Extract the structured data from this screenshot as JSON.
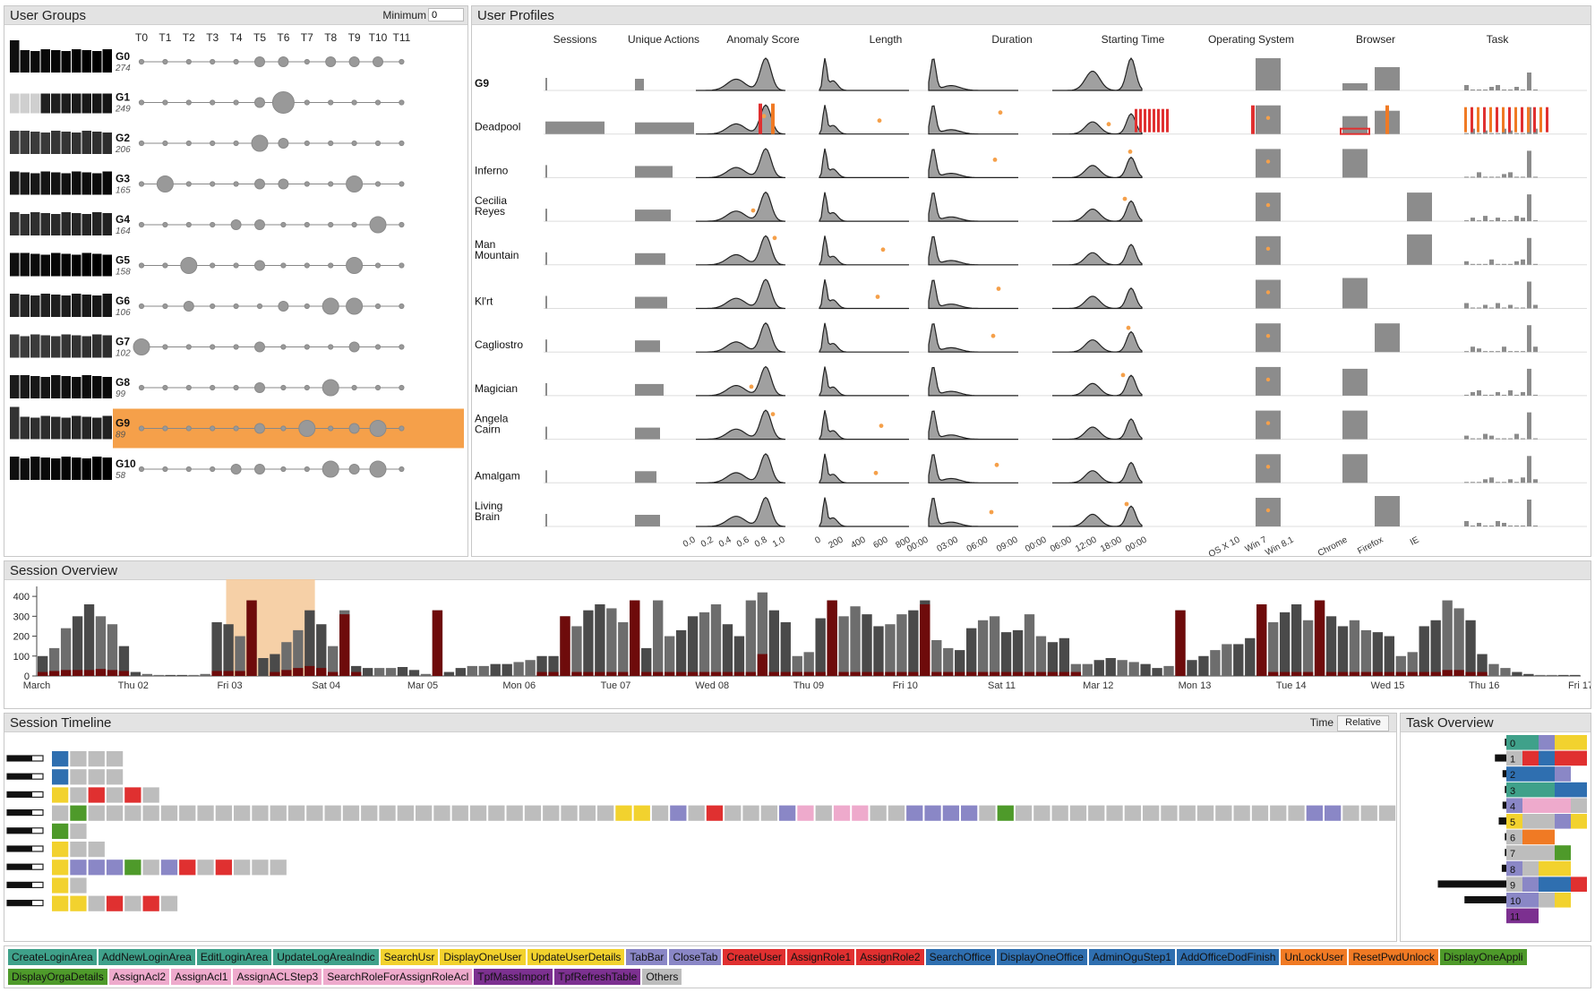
{
  "colors": {
    "highlight": "#f5a04a",
    "highlight_band": "#f5c898",
    "dark_red": "#6e0b0b",
    "bar_dark": "#3c3c3c",
    "bar_gray": "#9a9a9a",
    "panel_header": "#e3e3e3"
  },
  "user_groups": {
    "title": "User Groups",
    "minimum_label": "Minimum",
    "minimum_value": "0",
    "columns": [
      "T0",
      "T1",
      "T2",
      "T3",
      "T4",
      "T5",
      "T6",
      "T7",
      "T8",
      "T9",
      "T10",
      "T11"
    ],
    "selected_group": "G9",
    "groups": [
      {
        "name": "G0",
        "count": "274",
        "circles": [
          0,
          0,
          0,
          0,
          0,
          1,
          1,
          0,
          1,
          1,
          1,
          0
        ]
      },
      {
        "name": "G1",
        "count": "249",
        "circles": [
          0,
          0,
          0,
          0,
          0,
          1,
          3,
          0,
          0,
          0,
          0,
          0
        ]
      },
      {
        "name": "G2",
        "count": "206",
        "circles": [
          0,
          0,
          0,
          0,
          0,
          2,
          1,
          0,
          0,
          0,
          0,
          0
        ]
      },
      {
        "name": "G3",
        "count": "165",
        "circles": [
          0,
          2,
          0,
          0,
          0,
          1,
          1,
          0,
          0,
          2,
          0,
          0
        ]
      },
      {
        "name": "G4",
        "count": "164",
        "circles": [
          0,
          0,
          0,
          0,
          1,
          1,
          0,
          0,
          0,
          0,
          2,
          0
        ]
      },
      {
        "name": "G5",
        "count": "158",
        "circles": [
          0,
          0,
          2,
          0,
          0,
          1,
          0,
          0,
          0,
          2,
          0,
          0
        ]
      },
      {
        "name": "G6",
        "count": "106",
        "circles": [
          0,
          0,
          1,
          0,
          0,
          0,
          1,
          0,
          2,
          2,
          0,
          0
        ]
      },
      {
        "name": "G7",
        "count": "102",
        "circles": [
          2,
          0,
          0,
          0,
          0,
          1,
          0,
          0,
          0,
          1,
          0,
          0
        ]
      },
      {
        "name": "G8",
        "count": "99",
        "circles": [
          0,
          0,
          0,
          0,
          0,
          1,
          0,
          0,
          2,
          0,
          0,
          0
        ]
      },
      {
        "name": "G9",
        "count": "89",
        "circles": [
          0,
          0,
          0,
          0,
          0,
          1,
          0,
          2,
          0,
          1,
          2,
          0
        ]
      },
      {
        "name": "G10",
        "count": "58",
        "circles": [
          0,
          0,
          0,
          0,
          1,
          1,
          0,
          0,
          2,
          1,
          2,
          0
        ]
      }
    ]
  },
  "user_profiles": {
    "title": "User Profiles",
    "columns": [
      "Sessions",
      "Unique Actions",
      "Anomaly Score",
      "Length",
      "Duration",
      "Starting Time",
      "Operating System",
      "Browser",
      "Task"
    ],
    "rows": [
      {
        "name": "G9",
        "bold": true
      },
      {
        "name": "Deadpool"
      },
      {
        "name": "Inferno"
      },
      {
        "name": "Cecilia Reyes"
      },
      {
        "name": "Man Mountain"
      },
      {
        "name": "Kl'rt"
      },
      {
        "name": "Cagliostro"
      },
      {
        "name": "Magician"
      },
      {
        "name": "Angela Cairn"
      },
      {
        "name": "Amalgam"
      },
      {
        "name": "Living Brain"
      }
    ],
    "axis_ticks": {
      "anomaly_score": [
        "0.0",
        "0.2",
        "0.4",
        "0.6",
        "0.8",
        "1.0"
      ],
      "length": [
        "0",
        "200",
        "400",
        "600",
        "800"
      ],
      "duration": [
        "00:00",
        "03:00",
        "06:00",
        "09:00"
      ],
      "starting_time": [
        "00:00",
        "06:00",
        "12:00",
        "18:00",
        "00:00"
      ],
      "operating_system": [
        "OS X 10",
        "Win 7",
        "Win 8.1"
      ],
      "browser": [
        "Chrome",
        "Firefox",
        "IE"
      ]
    }
  },
  "session_overview": {
    "title": "Session Overview",
    "y_ticks": [
      "0",
      "100",
      "200",
      "300",
      "400"
    ],
    "x_labels": [
      "March",
      "Thu 02",
      "Fri 03",
      "Sat 04",
      "Mar 05",
      "Mon 06",
      "Tue 07",
      "Wed 08",
      "Thu 09",
      "Fri 10",
      "Sat 11",
      "Mar 12",
      "Mon 13",
      "Tue 14",
      "Wed 15",
      "Thu 16",
      "Fri 17"
    ]
  },
  "chart_data": {
    "type": "bar",
    "title": "Session Overview",
    "ylim": [
      0,
      450
    ],
    "x_labels": [
      "March",
      "Thu 02",
      "Fri 03",
      "Sat 04",
      "Mar 05",
      "Mon 06",
      "Tue 07",
      "Wed 08",
      "Thu 09",
      "Fri 10",
      "Sat 11",
      "Mar 12",
      "Mon 13",
      "Tue 14",
      "Wed 15",
      "Thu 16",
      "Fri 17"
    ],
    "series": [
      {
        "values": [
          100,
          140,
          240,
          300,
          360,
          300,
          260,
          150,
          20,
          10,
          5,
          5,
          5,
          5,
          10,
          270,
          260,
          200,
          380,
          90,
          110,
          170,
          230,
          330,
          260,
          150,
          330,
          50,
          40,
          40,
          40,
          45,
          30,
          10,
          330,
          20,
          40,
          50,
          50,
          60,
          60,
          70,
          80,
          100,
          100,
          300,
          250,
          330,
          360,
          340,
          270,
          380,
          140,
          380,
          200,
          230,
          300,
          320,
          360,
          260,
          200,
          380,
          420,
          330,
          270,
          100,
          120,
          290,
          380,
          300,
          350,
          310,
          250,
          260,
          310,
          330,
          380,
          180,
          140,
          130,
          240,
          280,
          300,
          220,
          230,
          310,
          200,
          170,
          190,
          60,
          60,
          80,
          90,
          80,
          70,
          60,
          40,
          50,
          330,
          80,
          100,
          130,
          160,
          160,
          190,
          360,
          270,
          320,
          360,
          280,
          380,
          300,
          250,
          280,
          230,
          220,
          200,
          100,
          120,
          250,
          280,
          380,
          340,
          280,
          110,
          60,
          40,
          20,
          10,
          5,
          5,
          5,
          5
        ]
      },
      {
        "values": [
          20,
          25,
          30,
          30,
          30,
          35,
          30,
          25,
          0,
          0,
          0,
          0,
          0,
          0,
          0,
          25,
          25,
          25,
          380,
          0,
          20,
          30,
          40,
          50,
          40,
          20,
          310,
          20,
          0,
          0,
          0,
          0,
          0,
          0,
          330,
          0,
          0,
          0,
          0,
          0,
          0,
          0,
          0,
          20,
          20,
          300,
          20,
          20,
          20,
          20,
          20,
          380,
          20,
          20,
          20,
          20,
          20,
          20,
          20,
          20,
          20,
          20,
          110,
          20,
          20,
          20,
          20,
          20,
          380,
          20,
          20,
          20,
          20,
          20,
          20,
          20,
          360,
          20,
          20,
          20,
          20,
          20,
          20,
          20,
          20,
          20,
          20,
          20,
          20,
          20,
          0,
          0,
          0,
          0,
          0,
          0,
          0,
          0,
          330,
          0,
          0,
          0,
          0,
          0,
          0,
          360,
          20,
          20,
          20,
          20,
          380,
          20,
          20,
          20,
          20,
          20,
          20,
          20,
          20,
          20,
          20,
          30,
          30,
          20,
          20,
          0,
          0,
          0,
          0,
          0,
          0,
          0,
          0
        ]
      }
    ],
    "highlight_range": [
      "Fri 03",
      "Sat 04"
    ]
  },
  "session_timeline": {
    "title": "Session Timeline",
    "time_label": "Time",
    "time_mode": "Relative",
    "rows": [
      {
        "user_bar": 0.3,
        "cells": [
          "blue",
          "gray",
          "gray",
          "gray"
        ]
      },
      {
        "user_bar": 0.3,
        "cells": [
          "blue",
          "gray",
          "gray",
          "gray"
        ]
      },
      {
        "user_bar": 0.3,
        "cells": [
          "yellow",
          "gray",
          "red",
          "gray",
          "red",
          "gray"
        ]
      },
      {
        "user_bar": 0.3,
        "cells": [
          "gray",
          "green",
          "gray",
          "gray",
          "gray",
          "gray",
          "gray",
          "gray",
          "gray",
          "gray",
          "gray",
          "gray",
          "gray",
          "gray",
          "gray",
          "gray",
          "gray",
          "gray",
          "gray",
          "gray",
          "gray",
          "gray",
          "gray",
          "gray",
          "gray",
          "gray",
          "gray",
          "gray",
          "gray",
          "gray",
          "gray",
          "yellow",
          "yellow",
          "gray",
          "purple",
          "gray",
          "red",
          "gray",
          "gray",
          "gray",
          "purple",
          "pink",
          "gray",
          "pink",
          "pink",
          "gray",
          "gray",
          "purple",
          "purple",
          "purple",
          "purple",
          "gray",
          "green",
          "gray",
          "gray",
          "gray",
          "gray",
          "gray",
          "gray",
          "gray",
          "gray",
          "gray",
          "gray",
          "gray",
          "gray",
          "gray",
          "gray",
          "gray",
          "gray",
          "purple",
          "purple",
          "gray",
          "gray",
          "gray",
          "gray",
          "gray",
          "gray",
          "gray",
          "gray",
          "gray",
          "gray",
          "gray",
          "gray",
          "gray",
          "gray",
          "gray",
          "gray",
          "gray",
          "gray",
          "gray",
          "gray",
          "gray",
          "gray",
          "gray",
          "gray",
          "gray",
          "gray",
          "gray",
          "gray",
          "gray",
          "gray",
          "gray",
          "gray",
          "gray",
          "gray",
          "gray",
          "gray",
          "gray",
          "gray",
          "gray",
          "gray",
          "gray",
          "gray",
          "gray",
          "gray",
          "gray",
          "gray",
          "gray",
          "gray",
          "gray",
          "gray",
          "gray",
          "purple",
          "gray",
          "gray",
          "purple",
          "purple",
          "gray",
          "gray",
          "purple"
        ]
      },
      {
        "user_bar": 0.3,
        "cells": [
          "green",
          "gray"
        ]
      },
      {
        "user_bar": 0.3,
        "cells": [
          "yellow",
          "gray",
          "gray"
        ]
      },
      {
        "user_bar": 0.3,
        "cells": [
          "yellow",
          "purple",
          "purple",
          "purple",
          "green",
          "gray",
          "purple",
          "red",
          "gray",
          "red",
          "gray",
          "gray",
          "gray"
        ]
      },
      {
        "user_bar": 0.3,
        "cells": [
          "yellow",
          "gray"
        ]
      },
      {
        "user_bar": 0.3,
        "cells": [
          "yellow",
          "yellow",
          "gray",
          "red",
          "gray",
          "red",
          "gray"
        ]
      }
    ]
  },
  "task_overview": {
    "title": "Task Overview",
    "tasks": [
      {
        "label": "0",
        "bar": 0.02,
        "segs": [
          "teal",
          "teal",
          "purple",
          "yellow",
          "yellow"
        ]
      },
      {
        "label": "1",
        "bar": 0.15,
        "segs": [
          "gray",
          "red",
          "blue",
          "red",
          "red"
        ]
      },
      {
        "label": "2",
        "bar": 0.05,
        "segs": [
          "blue",
          "blue",
          "blue",
          "purple"
        ]
      },
      {
        "label": "3",
        "bar": 0.02,
        "segs": [
          "teal",
          "teal",
          "teal",
          "blue",
          "blue"
        ]
      },
      {
        "label": "4",
        "bar": 0.05,
        "segs": [
          "purple",
          "pink",
          "pink",
          "pink",
          "gray"
        ]
      },
      {
        "label": "5",
        "bar": 0.1,
        "segs": [
          "yellow",
          "gray",
          "gray",
          "purple",
          "yellow"
        ]
      },
      {
        "label": "6",
        "bar": 0.02,
        "segs": [
          "gray",
          "orange",
          "orange"
        ]
      },
      {
        "label": "7",
        "bar": 0.02,
        "segs": [
          "gray",
          "gray",
          "gray",
          "green"
        ]
      },
      {
        "label": "8",
        "bar": 0.06,
        "segs": [
          "purple",
          "gray",
          "yellow",
          "yellow"
        ]
      },
      {
        "label": "9",
        "bar": 0.9,
        "segs": [
          "gray",
          "purple",
          "blue",
          "blue",
          "red"
        ]
      },
      {
        "label": "10",
        "bar": 0.55,
        "segs": [
          "purple",
          "purple",
          "gray",
          "yellow"
        ]
      },
      {
        "label": "11",
        "bar": 0.0,
        "segs": [
          "darkpurple",
          "darkpurple"
        ]
      }
    ]
  },
  "task_colors": {
    "teal": "#3fa18a",
    "blue": "#2f6fb0",
    "yellow": "#f2d22e",
    "red": "#e03030",
    "purple": "#8a87c6",
    "pink": "#eeaacc",
    "green": "#4e9a2a",
    "orange": "#f07a24",
    "gray": "#bdbdbd",
    "darkpurple": "#7c3090"
  },
  "legend": {
    "row1": [
      {
        "label": "CreateLoginArea",
        "color": "#3fa18a"
      },
      {
        "label": "AddNewLoginArea",
        "color": "#3fa18a"
      },
      {
        "label": "EditLoginArea",
        "color": "#3fa18a"
      },
      {
        "label": "UpdateLogAreaIndic",
        "color": "#3fa18a"
      },
      {
        "label": "SearchUsr",
        "color": "#f2d22e"
      },
      {
        "label": "DisplayOneUser",
        "color": "#f2d22e"
      },
      {
        "label": "UpdateUserDetails",
        "color": "#f2d22e"
      },
      {
        "label": "TabBar",
        "color": "#8a87c6"
      },
      {
        "label": "CloseTab",
        "color": "#8a87c6"
      },
      {
        "label": "CreateUser",
        "color": "#e03030"
      },
      {
        "label": "AssignRole1",
        "color": "#e03030"
      },
      {
        "label": "AssignRole2",
        "color": "#e03030"
      },
      {
        "label": "SearchOffice",
        "color": "#2f6fb0"
      },
      {
        "label": "DisplayOneOffice",
        "color": "#2f6fb0"
      },
      {
        "label": "AdminOguStep1",
        "color": "#2f6fb0"
      },
      {
        "label": "AddOfficeDodFinish",
        "color": "#2f6fb0"
      },
      {
        "label": "UnLockUser",
        "color": "#f07a24"
      },
      {
        "label": "ResetPwdUnlock",
        "color": "#f07a24"
      },
      {
        "label": "DisplayOneAppli",
        "color": "#4e9a2a"
      }
    ],
    "row2": [
      {
        "label": "DisplayOrgaDetails",
        "color": "#4e9a2a"
      },
      {
        "label": "AssignAcl2",
        "color": "#eeaacc"
      },
      {
        "label": "AssignAcl1",
        "color": "#eeaacc"
      },
      {
        "label": "AssignACLStep3",
        "color": "#eeaacc"
      },
      {
        "label": "SearchRoleForAssignRoleAcl",
        "color": "#eeaacc"
      },
      {
        "label": "TpfMassImport",
        "color": "#7c3090"
      },
      {
        "label": "TpfRefreshTable",
        "color": "#7c3090"
      },
      {
        "label": "Others",
        "color": "#bdbdbd"
      }
    ]
  }
}
